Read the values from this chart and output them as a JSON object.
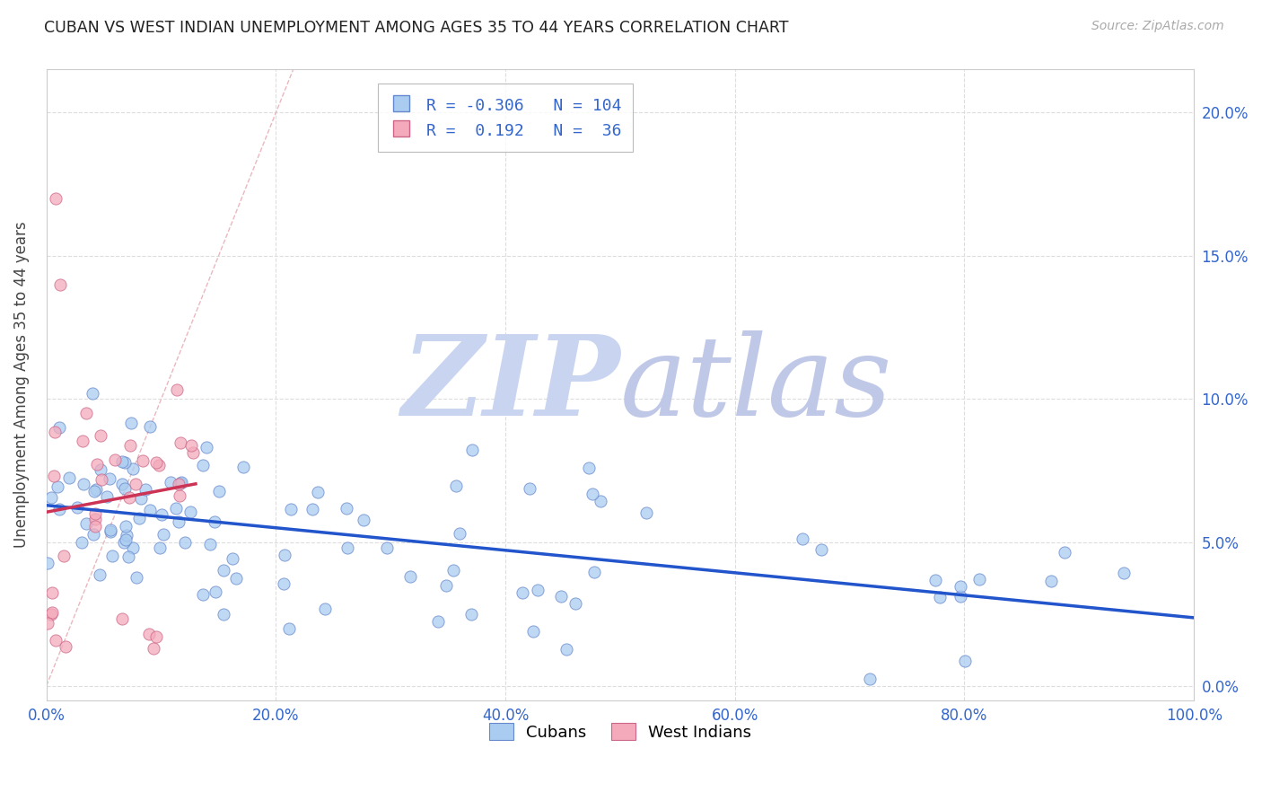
{
  "title": "CUBAN VS WEST INDIAN UNEMPLOYMENT AMONG AGES 35 TO 44 YEARS CORRELATION CHART",
  "source": "Source: ZipAtlas.com",
  "ylabel": "Unemployment Among Ages 35 to 44 years",
  "xlim": [
    0.0,
    1.0
  ],
  "ylim": [
    -0.005,
    0.215
  ],
  "xtick_vals": [
    0.0,
    0.2,
    0.4,
    0.6,
    0.8,
    1.0
  ],
  "ytick_vals": [
    0.0,
    0.05,
    0.1,
    0.15,
    0.2
  ],
  "xtick_labels": [
    "0.0%",
    "20.0%",
    "40.0%",
    "60.0%",
    "80.0%",
    "100.0%"
  ],
  "ytick_labels_right": [
    "0.0%",
    "5.0%",
    "10.0%",
    "15.0%",
    "20.0%"
  ],
  "cuban_color": "#aaccf0",
  "cuban_edge": "#6688cc",
  "west_indian_color": "#f4aabb",
  "west_indian_edge": "#cc6688",
  "cuban_R": -0.306,
  "cuban_N": 104,
  "west_indian_R": 0.192,
  "west_indian_N": 36,
  "trend_blue": "#2255cc",
  "trend_pink": "#cc3355",
  "diag_color": "#e8b0b8",
  "diag_style": "--",
  "grid_color": "#dddddd",
  "background_color": "#ffffff",
  "tick_color": "#3366cc",
  "title_color": "#222222",
  "source_color": "#aaaaaa",
  "ylabel_color": "#444444",
  "watermark_zip": "ZIP",
  "watermark_atlas": "atlas",
  "watermark_color_zip": "#c8d4f0",
  "watermark_color_atlas": "#c0c8e8"
}
